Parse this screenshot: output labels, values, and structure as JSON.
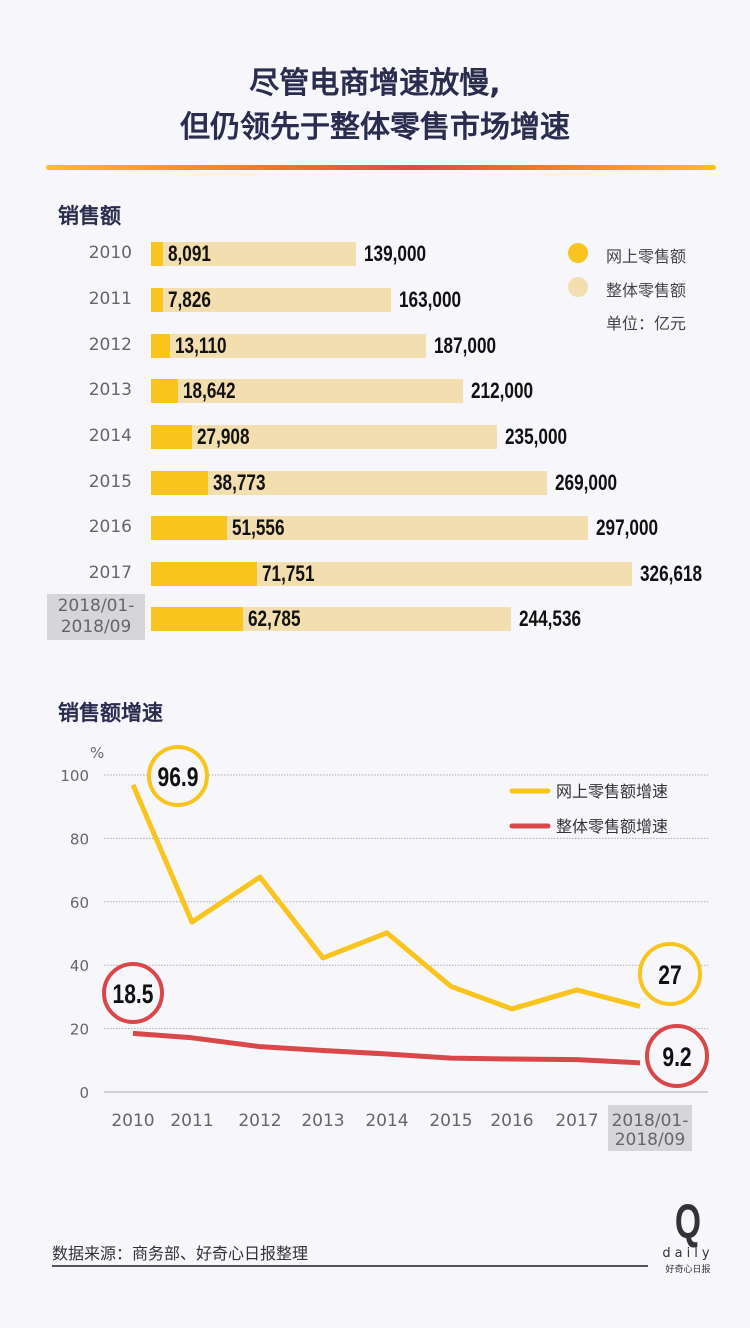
{
  "title": [
    "尽管电商增速放慢,",
    "但仍领先于整体零售市场增速"
  ],
  "colors": {
    "online": "#f8c41d",
    "total": "#f3deaf",
    "online_line": "#f8c41d",
    "total_line": "#d9474a"
  },
  "source": "数据来源：商务部、好奇心日报整理",
  "logo": {
    "letter": "Q",
    "word": "daily",
    "cn": "好奇心日报"
  },
  "chart_data": [
    {
      "type": "bar",
      "title": "销售额",
      "categories": [
        "2010",
        "2011",
        "2012",
        "2013",
        "2014",
        "2015",
        "2016",
        "2017",
        "2018/01-\n2018/09"
      ],
      "series": [
        {
          "name": "网上零售额",
          "values": [
            8091,
            7826,
            13110,
            18642,
            27908,
            38773,
            51556,
            71751,
            62785
          ]
        },
        {
          "name": "整体零售额",
          "values": [
            139000,
            163000,
            187000,
            212000,
            235000,
            269000,
            297000,
            326618,
            244536
          ]
        }
      ],
      "labels_online": [
        "8,091",
        "7,826",
        "13,110",
        "18,642",
        "27,908",
        "38,773",
        "51,556",
        "71,751",
        "62,785"
      ],
      "labels_total": [
        "139,000",
        "163,000",
        "187,000",
        "212,000",
        "235,000",
        "269,000",
        "297,000",
        "326,618",
        "244,536"
      ],
      "unit": "单位：亿元",
      "legend_placement": "top-right"
    },
    {
      "type": "line",
      "title": "销售额增速",
      "ylabel": "%",
      "ylim": [
        0,
        100
      ],
      "yticks": [
        "0",
        "20",
        "40",
        "60",
        "80",
        "100"
      ],
      "categories": [
        "2010",
        "2011",
        "2012",
        "2013",
        "2014",
        "2015",
        "2016",
        "2017",
        "2018/01-\n2018/09"
      ],
      "series": [
        {
          "name": "网上零售额增速",
          "values": [
            96.9,
            53.6,
            67.8,
            42.3,
            50.2,
            33.3,
            26.2,
            32.2,
            27
          ]
        },
        {
          "name": "整体零售额增速",
          "values": [
            18.5,
            17.1,
            14.3,
            13.1,
            12.0,
            10.7,
            10.4,
            10.2,
            9.2
          ]
        }
      ],
      "annotations": [
        "96.9",
        "27",
        "18.5",
        "9.2"
      ],
      "grid": true,
      "legend_placement": "top-right"
    }
  ]
}
